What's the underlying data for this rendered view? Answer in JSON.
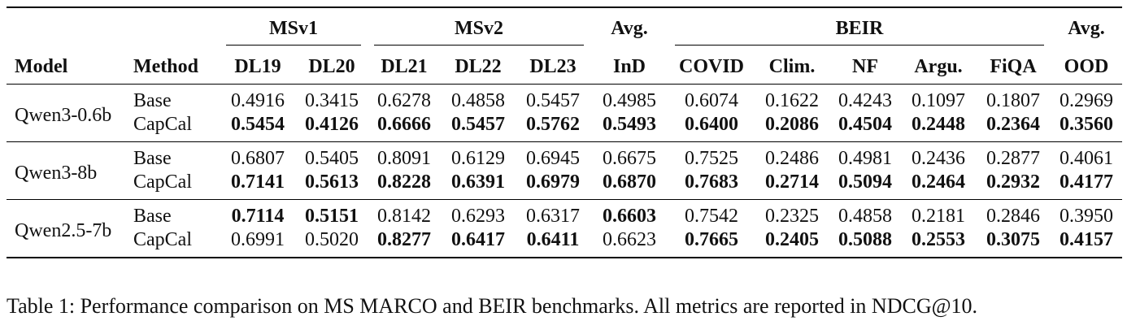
{
  "table": {
    "groups": {
      "msv1": "MSv1",
      "msv2": "MSv2",
      "avg_ind": "Avg.",
      "beir": "BEIR",
      "avg_ood": "Avg."
    },
    "columns": [
      "Model",
      "Method",
      "DL19",
      "DL20",
      "DL21",
      "DL22",
      "DL23",
      "InD",
      "COVID",
      "Clim.",
      "NF",
      "Argu.",
      "FiQA",
      "OOD"
    ],
    "models": [
      {
        "name": "Qwen3-0.6b",
        "rows": [
          {
            "method": "Base",
            "values": [
              "0.4916",
              "0.3415",
              "0.6278",
              "0.4858",
              "0.5457",
              "0.4985",
              "0.6074",
              "0.1622",
              "0.4243",
              "0.1097",
              "0.1807",
              "0.2969"
            ],
            "bold": [
              false,
              false,
              false,
              false,
              false,
              false,
              false,
              false,
              false,
              false,
              false,
              false
            ]
          },
          {
            "method": "CapCal",
            "values": [
              "0.5454",
              "0.4126",
              "0.6666",
              "0.5457",
              "0.5762",
              "0.5493",
              "0.6400",
              "0.2086",
              "0.4504",
              "0.2448",
              "0.2364",
              "0.3560"
            ],
            "bold": [
              true,
              true,
              true,
              true,
              true,
              true,
              true,
              true,
              true,
              true,
              true,
              true
            ]
          }
        ]
      },
      {
        "name": "Qwen3-8b",
        "rows": [
          {
            "method": "Base",
            "values": [
              "0.6807",
              "0.5405",
              "0.8091",
              "0.6129",
              "0.6945",
              "0.6675",
              "0.7525",
              "0.2486",
              "0.4981",
              "0.2436",
              "0.2877",
              "0.4061"
            ],
            "bold": [
              false,
              false,
              false,
              false,
              false,
              false,
              false,
              false,
              false,
              false,
              false,
              false
            ]
          },
          {
            "method": "CapCal",
            "values": [
              "0.7141",
              "0.5613",
              "0.8228",
              "0.6391",
              "0.6979",
              "0.6870",
              "0.7683",
              "0.2714",
              "0.5094",
              "0.2464",
              "0.2932",
              "0.4177"
            ],
            "bold": [
              true,
              true,
              true,
              true,
              true,
              true,
              true,
              true,
              true,
              true,
              true,
              true
            ]
          }
        ]
      },
      {
        "name": "Qwen2.5-7b",
        "rows": [
          {
            "method": "Base",
            "values": [
              "0.7114",
              "0.5151",
              "0.8142",
              "0.6293",
              "0.6317",
              "0.6603",
              "0.7542",
              "0.2325",
              "0.4858",
              "0.2181",
              "0.2846",
              "0.3950"
            ],
            "bold": [
              true,
              true,
              false,
              false,
              false,
              true,
              false,
              false,
              false,
              false,
              false,
              false
            ]
          },
          {
            "method": "CapCal",
            "values": [
              "0.6991",
              "0.5020",
              "0.8277",
              "0.6417",
              "0.6411",
              "0.6623",
              "0.7665",
              "0.2405",
              "0.5088",
              "0.2553",
              "0.3075",
              "0.4157"
            ],
            "bold": [
              false,
              false,
              true,
              true,
              true,
              false,
              true,
              true,
              true,
              true,
              true,
              true
            ]
          }
        ]
      }
    ]
  },
  "caption": "Table 1: Performance comparison on MS MARCO and BEIR benchmarks. All metrics are reported in NDCG@10."
}
